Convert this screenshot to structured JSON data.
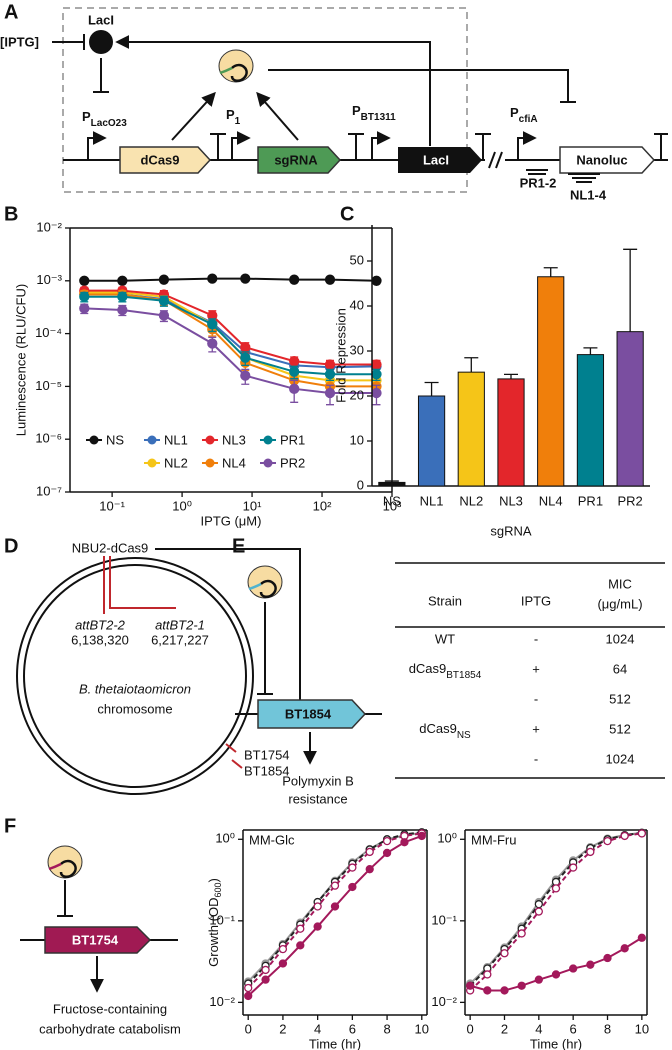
{
  "panel_labels": [
    "A",
    "B",
    "C",
    "D",
    "E",
    "F"
  ],
  "diagram_a": {
    "inducer": "[IPTG]",
    "repressor": "LacI",
    "promoters": [
      {
        "main": "P",
        "sub": "LacO23"
      },
      {
        "main": "P",
        "sub": "1"
      },
      {
        "main": "P",
        "sub": "BT1311"
      },
      {
        "main": "P",
        "sub": "cfiA"
      }
    ],
    "genes": [
      "dCas9",
      "sgRNA",
      "LacI",
      "Nanoluc"
    ],
    "targets": [
      "PR1-2",
      "NL1-4"
    ]
  },
  "chart_data": [
    {
      "type": "line",
      "xscale": "log",
      "yscale": "log",
      "xlim": [
        0.025,
        1000
      ],
      "ylim": [
        1e-07,
        0.01
      ],
      "xticks": [
        {
          "value": 0.1,
          "label": "10⁻¹"
        },
        {
          "value": 1,
          "label": "10⁰"
        },
        {
          "value": 10,
          "label": "10¹"
        },
        {
          "value": 100,
          "label": "10²"
        },
        {
          "value": 1000,
          "label": "10³"
        }
      ],
      "yticks": [
        {
          "value": 1e-07,
          "label": "10⁻⁷"
        },
        {
          "value": 1e-06,
          "label": "10⁻⁶"
        },
        {
          "value": 1e-05,
          "label": "10⁻⁵"
        },
        {
          "value": 0.0001,
          "label": "10⁻⁴"
        },
        {
          "value": 0.001,
          "label": "10⁻³"
        },
        {
          "value": 0.01,
          "label": "10⁻²"
        }
      ],
      "xlabel": "IPTG (μM)",
      "ylabel": "Luminescence (RLU/CFU)",
      "legend": true,
      "x": [
        0.04,
        0.14,
        0.55,
        2.7,
        8,
        40,
        130,
        600
      ],
      "series": [
        {
          "name": "NS",
          "color": "#111111",
          "values": [
            0.001,
            0.001,
            0.00105,
            0.0011,
            0.0011,
            0.00105,
            0.00105,
            0.001
          ],
          "errors": [
            5e-05,
            5e-05,
            5e-05,
            6e-05,
            6e-05,
            5e-05,
            5e-05,
            5e-05
          ]
        },
        {
          "name": "NL1",
          "color": "#3a6fba",
          "values": [
            0.00055,
            0.00055,
            0.00045,
            0.00016,
            4.5e-05,
            2.5e-05,
            2.3e-05,
            2.4e-05
          ],
          "errors": [
            0.0001,
            0.0001,
            9e-05,
            4e-05,
            1.2e-05,
            6e-06,
            5e-06,
            6e-06
          ]
        },
        {
          "name": "NL2",
          "color": "#f5c518",
          "values": [
            0.0006,
            0.0006,
            0.0005,
            0.00015,
            3.5e-05,
            1.6e-05,
            1.3e-05,
            1.3e-05
          ],
          "errors": [
            0.0001,
            0.0001,
            0.0001,
            4e-05,
            1e-05,
            4e-06,
            3e-06,
            3e-06
          ]
        },
        {
          "name": "NL3",
          "color": "#e3262b",
          "values": [
            0.00065,
            0.00065,
            0.00055,
            0.00022,
            5.5e-05,
            3e-05,
            2.6e-05,
            2.6e-05
          ],
          "errors": [
            0.0001,
            0.0001,
            0.0001,
            5e-05,
            1.2e-05,
            6e-06,
            5e-06,
            5e-06
          ]
        },
        {
          "name": "NL4",
          "color": "#f07f0b",
          "values": [
            0.00055,
            0.00055,
            0.00043,
            0.00012,
            2.8e-05,
            1.3e-05,
            1e-05,
            1e-05
          ],
          "errors": [
            0.0001,
            0.0001,
            9e-05,
            3e-05,
            8e-06,
            4e-06,
            3e-06,
            3e-06
          ]
        },
        {
          "name": "PR1",
          "color": "#00808f",
          "values": [
            0.0005,
            0.0005,
            0.00042,
            0.00015,
            3.5e-05,
            1.9e-05,
            1.7e-05,
            1.7e-05
          ],
          "errors": [
            0.0001,
            0.0001,
            9e-05,
            4e-05,
            1e-05,
            5e-06,
            4e-06,
            4e-06
          ]
        },
        {
          "name": "PR2",
          "color": "#7a4ea0",
          "values": [
            0.0003,
            0.00028,
            0.00022,
            6.5e-05,
            1.6e-05,
            9e-06,
            7.5e-06,
            7.5e-06
          ],
          "errors": [
            6e-05,
            6e-05,
            5e-05,
            2e-05,
            5e-06,
            4e-06,
            3e-06,
            3e-06
          ]
        }
      ]
    },
    {
      "type": "bar",
      "categories": [
        "NS",
        "NL1",
        "NL2",
        "NL3",
        "NL4",
        "PR1",
        "PR2"
      ],
      "values": [
        0.8,
        20,
        25.3,
        23.8,
        46.5,
        29.2,
        34.3
      ],
      "errors": [
        0.3,
        3,
        3.2,
        1,
        2,
        1.5,
        18.3
      ],
      "colors": [
        "#111111",
        "#3a6fba",
        "#f5c518",
        "#e3262b",
        "#f07f0b",
        "#00808f",
        "#7a4ea0"
      ],
      "ylim": [
        0,
        58
      ],
      "yticks": [
        0,
        10,
        20,
        30,
        40,
        50
      ],
      "xlabel": "sgRNA",
      "ylabel": "Fold Repression"
    },
    {
      "type": "line",
      "title": "MM-Glc",
      "yscale": "log",
      "xlim": [
        -0.3,
        10.3
      ],
      "ylim": [
        0.007,
        1.3
      ],
      "xticks": [
        0,
        2,
        4,
        6,
        8,
        10
      ],
      "yticks": [
        {
          "value": 0.01,
          "label": "10⁻²"
        },
        {
          "value": 0.1,
          "label": "10⁻¹"
        },
        {
          "value": 1,
          "label": "10⁰"
        }
      ],
      "xlabel": "Time (hr)",
      "ylabel": {
        "main": "Growth (OD",
        "sub": "600",
        "end": ")"
      },
      "x": [
        0,
        1,
        2,
        3,
        4,
        5,
        6,
        7,
        8,
        9,
        10
      ],
      "series": [
        {
          "color": "#999999",
          "dashed": false,
          "values": [
            0.018,
            0.03,
            0.052,
            0.095,
            0.17,
            0.31,
            0.52,
            0.76,
            1.0,
            1.12,
            1.2
          ]
        },
        {
          "color": "#222222",
          "dashed": true,
          "values": [
            0.017,
            0.028,
            0.05,
            0.09,
            0.17,
            0.3,
            0.5,
            0.75,
            1.0,
            1.15,
            1.22
          ]
        },
        {
          "color": "#a3195b",
          "dashed": true,
          "values": [
            0.015,
            0.025,
            0.045,
            0.08,
            0.15,
            0.27,
            0.45,
            0.7,
            0.95,
            1.1,
            1.18
          ]
        },
        {
          "color": "#a3195b",
          "dashed": false,
          "values": [
            0.012,
            0.019,
            0.03,
            0.05,
            0.085,
            0.15,
            0.26,
            0.43,
            0.68,
            0.92,
            1.1
          ]
        }
      ]
    },
    {
      "type": "line",
      "title": "MM-Fru",
      "yscale": "log",
      "xlim": [
        -0.3,
        10.3
      ],
      "ylim": [
        0.007,
        1.3
      ],
      "xticks": [
        0,
        2,
        4,
        6,
        8,
        10
      ],
      "yticks": [
        {
          "value": 0.01,
          "label": "10⁻²"
        },
        {
          "value": 0.1,
          "label": "10⁻¹"
        },
        {
          "value": 1,
          "label": "10⁰"
        }
      ],
      "xlabel": "Time (hr)",
      "x": [
        0,
        1,
        2,
        3,
        4,
        5,
        6,
        7,
        8,
        9,
        10
      ],
      "series": [
        {
          "color": "#999999",
          "dashed": false,
          "values": [
            0.017,
            0.027,
            0.047,
            0.085,
            0.17,
            0.32,
            0.55,
            0.8,
            1.02,
            1.13,
            1.2
          ]
        },
        {
          "color": "#222222",
          "dashed": true,
          "values": [
            0.016,
            0.026,
            0.045,
            0.08,
            0.16,
            0.3,
            0.52,
            0.78,
            1.0,
            1.12,
            1.2
          ]
        },
        {
          "color": "#a3195b",
          "dashed": true,
          "values": [
            0.014,
            0.022,
            0.04,
            0.07,
            0.13,
            0.25,
            0.45,
            0.7,
            0.95,
            1.1,
            1.18
          ]
        },
        {
          "color": "#a3195b",
          "dashed": false,
          "values": [
            0.016,
            0.014,
            0.014,
            0.016,
            0.019,
            0.022,
            0.026,
            0.029,
            0.035,
            0.046,
            0.062
          ]
        }
      ]
    }
  ],
  "diagram_d": {
    "plasmid": "NBU2-dCas9",
    "sites": [
      {
        "name": "attBT2-2",
        "position": "6,138,320"
      },
      {
        "name": "attBT2-1",
        "position": "6,217,227"
      }
    ],
    "organism": "B. thetaiotaomicron",
    "chromosome": "chromosome",
    "genes": [
      "BT1754",
      "BT1854"
    ]
  },
  "diagram_e": {
    "gene": "BT1854",
    "phenotype": [
      "Polymyxin B",
      "resistance"
    ]
  },
  "table_e": {
    "columns": [
      "Strain",
      "IPTG",
      {
        "main": "MIC",
        "unit": "(μg/mL)"
      }
    ],
    "rows": [
      [
        "WT",
        "-",
        1024
      ],
      [
        {
          "main": "dCas9",
          "sub": "BT1854"
        },
        "+",
        64
      ],
      [
        null,
        "-",
        512
      ],
      [
        {
          "main": "dCas9",
          "sub": "NS"
        },
        "+",
        512
      ],
      [
        null,
        "-",
        1024
      ]
    ]
  },
  "diagram_f": {
    "gene": "BT1754",
    "phenotype": [
      "Fructose-containing",
      "carbohydrate catabolism"
    ]
  }
}
